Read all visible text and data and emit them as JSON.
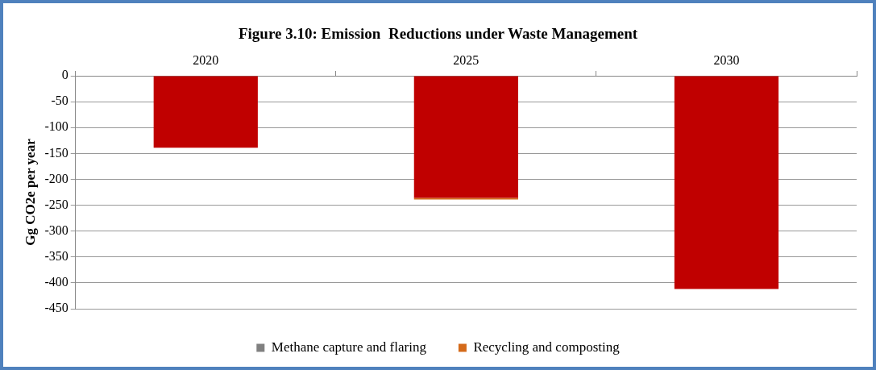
{
  "chart_data": {
    "type": "bar",
    "title": "Figure 3.10: Emission  Reductions under Waste Management",
    "ylabel": "Gg CO2e per year",
    "categories": [
      "2020",
      "2025",
      "2030"
    ],
    "stacked": true,
    "series": [
      {
        "color": "#c00000",
        "values": [
          -139,
          -236,
          -412
        ]
      },
      {
        "name": "Methane capture and flaring",
        "color": "#808080",
        "values": [
          0,
          0,
          0
        ]
      },
      {
        "name": "Recycling and composting",
        "color": "#d46a1a",
        "values": [
          0,
          -3,
          0
        ]
      }
    ],
    "ylim": [
      -450,
      0
    ],
    "yticks": [
      0,
      -50,
      -100,
      -150,
      -200,
      -250,
      -300,
      -350,
      -400,
      -450
    ],
    "grid": "y",
    "legend": "bottom"
  }
}
